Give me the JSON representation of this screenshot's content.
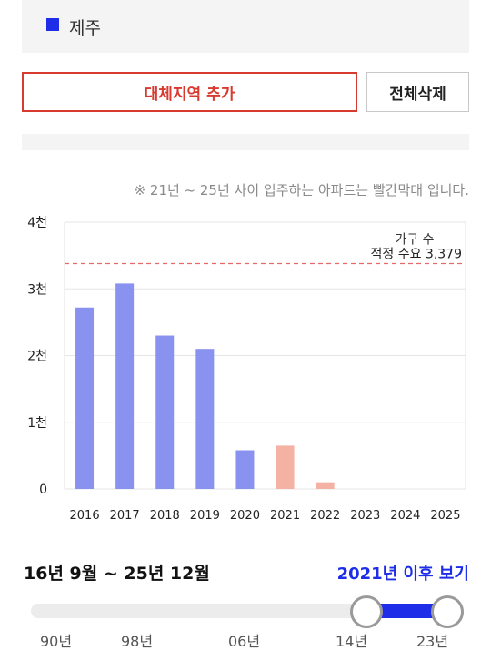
{
  "region": {
    "name": "제주",
    "color": "#1e2ee8"
  },
  "buttons": {
    "add": "대체지역 추가",
    "clear": "전체삭제"
  },
  "notice": "※ 21년 ~ 25년 사이 입주하는 아파트는 빨간막대 입니다.",
  "chart_data": {
    "type": "bar",
    "categories": [
      "2016",
      "2017",
      "2018",
      "2019",
      "2020",
      "2021",
      "2022",
      "2023",
      "2024",
      "2025"
    ],
    "values": [
      2720,
      3080,
      2300,
      2100,
      580,
      650,
      100,
      0,
      0,
      0
    ],
    "highlight_from": "2021",
    "colors": {
      "past": "#8a92ef",
      "future": "#f4b2a4",
      "line": "#e46a6a"
    },
    "y_ticks": [
      {
        "value": 0,
        "label": "0"
      },
      {
        "value": 1000,
        "label": "1천"
      },
      {
        "value": 2000,
        "label": "2천"
      },
      {
        "value": 3000,
        "label": "3천"
      },
      {
        "value": 4000,
        "label": "4천"
      }
    ],
    "ylim": [
      0,
      4000
    ],
    "reference": {
      "value": 3379,
      "title": "가구 수",
      "label": "적정 수요 3,379"
    },
    "grid": true
  },
  "range": {
    "label": "16년 9월 ~ 25년 12월",
    "link": "2021년 이후 보기",
    "ticks": [
      "90년",
      "98년",
      "06년",
      "14년",
      "23년"
    ]
  }
}
